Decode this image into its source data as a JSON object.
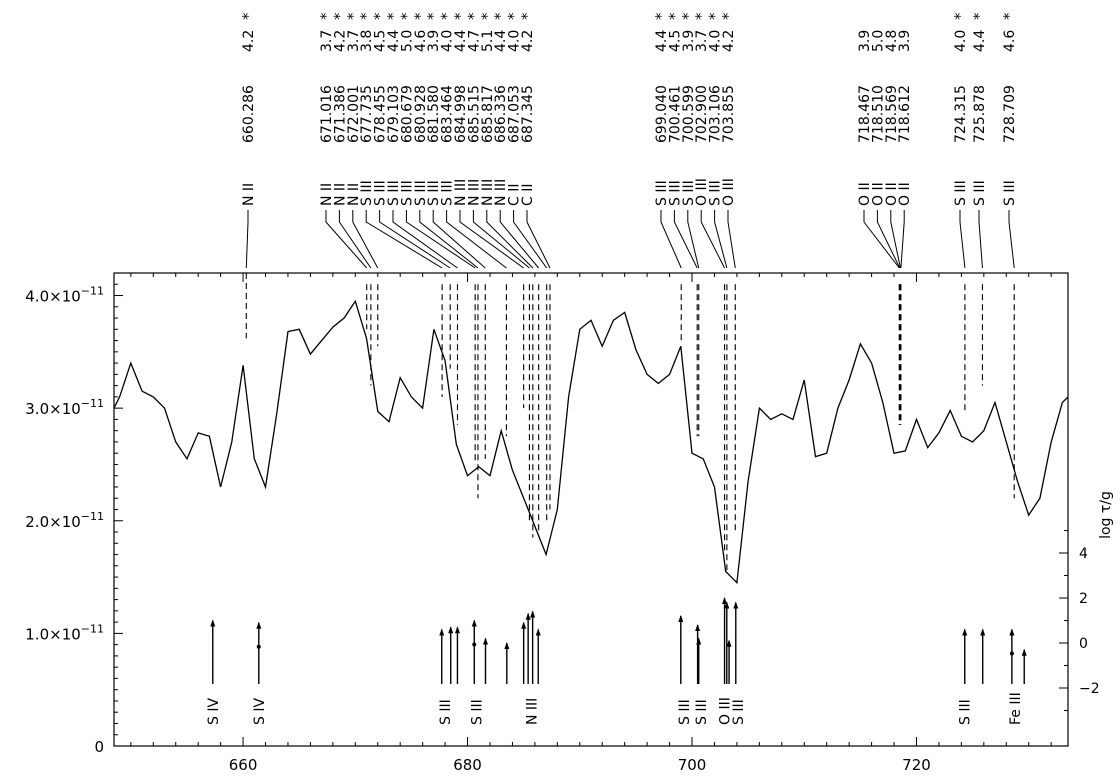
{
  "chart_data": {
    "type": "line",
    "title": "",
    "xlabel": "",
    "ylabel": "",
    "right_axis_label": "log τ/g",
    "xlim": [
      648.5,
      733.5
    ],
    "ylim": [
      0,
      4.2e-11
    ],
    "x_ticks": [
      660,
      680,
      700,
      720
    ],
    "x_tick_labels": [
      "660",
      "680",
      "700",
      "720"
    ],
    "y_ticks": [
      0,
      1e-11,
      2e-11,
      3e-11,
      4e-11
    ],
    "y_tick_labels": [
      {
        "mant": "0",
        "exp": ""
      },
      {
        "mant": "1.0×10",
        "exp": "−11"
      },
      {
        "mant": "2.0×10",
        "exp": "−11"
      },
      {
        "mant": "3.0×10",
        "exp": "−11"
      },
      {
        "mant": "4.0×10",
        "exp": "−11"
      }
    ],
    "right_ticks": [
      -2,
      0,
      2,
      4
    ],
    "right_tick_labels": [
      "−2",
      "0",
      "2",
      "4"
    ],
    "grid": false,
    "series": [
      {
        "x": [
          648.5,
          649.0,
          650.0,
          651.0,
          652.0,
          653.0,
          654.0,
          655.0,
          656.0,
          657.0,
          658.0,
          659.0,
          660.0,
          661.0,
          662.0,
          663.0,
          664.0,
          665.0,
          666.0,
          667.0,
          668.0,
          669.0,
          670.0,
          671.0,
          672.0,
          673.0,
          674.0,
          675.0,
          676.0,
          677.0,
          678.0,
          679.0,
          680.0,
          681.0,
          682.0,
          683.0,
          684.0,
          685.0,
          686.0,
          687.0,
          688.0,
          689.0,
          690.0,
          691.0,
          692.0,
          693.0,
          694.0,
          695.0,
          696.0,
          697.0,
          698.0,
          699.0,
          700.0,
          701.0,
          702.0,
          703.0,
          704.0,
          705.0,
          706.0,
          707.0,
          708.0,
          709.0,
          710.0,
          711.0,
          712.0,
          713.0,
          714.0,
          715.0,
          716.0,
          717.0,
          718.0,
          719.0,
          720.0,
          721.0,
          722.0,
          723.0,
          724.0,
          725.0,
          726.0,
          727.0,
          728.0,
          729.0,
          730.0,
          731.0,
          732.0,
          733.0,
          733.5
        ],
        "y": [
          3e-11,
          3.1e-11,
          3.4e-11,
          3.15e-11,
          3.1e-11,
          3e-11,
          2.7e-11,
          2.55e-11,
          2.78e-11,
          2.75e-11,
          2.3e-11,
          2.7e-11,
          3.38e-11,
          2.55e-11,
          2.3e-11,
          2.95e-11,
          3.68e-11,
          3.7e-11,
          3.48e-11,
          3.6e-11,
          3.72e-11,
          3.8e-11,
          3.95e-11,
          3.62e-11,
          2.97e-11,
          2.88e-11,
          3.27e-11,
          3.1e-11,
          3e-11,
          3.7e-11,
          3.42e-11,
          2.68e-11,
          2.4e-11,
          2.48e-11,
          2.4e-11,
          2.8e-11,
          2.45e-11,
          2.2e-11,
          1.95e-11,
          1.7e-11,
          2.1e-11,
          3.1e-11,
          3.7e-11,
          3.78e-11,
          3.55e-11,
          3.78e-11,
          3.85e-11,
          3.52e-11,
          3.3e-11,
          3.22e-11,
          3.3e-11,
          3.55e-11,
          2.6e-11,
          2.55e-11,
          2.3e-11,
          1.55e-11,
          1.45e-11,
          2.35e-11,
          3e-11,
          2.9e-11,
          2.95e-11,
          2.9e-11,
          3.25e-11,
          2.57e-11,
          2.6e-11,
          3e-11,
          3.25e-11,
          3.57e-11,
          3.4e-11,
          3.05e-11,
          2.6e-11,
          2.62e-11,
          2.9e-11,
          2.65e-11,
          2.78e-11,
          2.98e-11,
          2.75e-11,
          2.7e-11,
          2.8e-11,
          3.05e-11,
          2.7e-11,
          2.35e-11,
          2.05e-11,
          2.2e-11,
          2.7e-11,
          3.05e-11,
          3.1e-11
        ]
      }
    ],
    "top_annotations": [
      {
        "wl": 660.286,
        "ion": "N II",
        "label": "660.286",
        "value": "4.2",
        "star": true,
        "dash_top": 4.2e-11,
        "dash_bottom": 3.62e-11
      },
      {
        "wl": 671.016,
        "ion": "N II",
        "label": "671.016",
        "value": "3.7",
        "star": true,
        "dash_top": 4.1e-11,
        "dash_bottom": 3.7e-11
      },
      {
        "wl": 671.386,
        "ion": "N II",
        "label": "671.386",
        "value": "4.2",
        "star": true,
        "dash_top": 4.1e-11,
        "dash_bottom": 3.2e-11
      },
      {
        "wl": 672.001,
        "ion": "N II",
        "label": "672.001",
        "value": "3.7",
        "star": true,
        "dash_top": 4.1e-11,
        "dash_bottom": 3.55e-11
      },
      {
        "wl": 677.735,
        "ion": "S III",
        "label": "677.735",
        "value": "3.8",
        "star": true,
        "dash_top": 4.1e-11,
        "dash_bottom": 3.1e-11
      },
      {
        "wl": 678.455,
        "ion": "S III",
        "label": "678.455",
        "value": "4.5",
        "star": true,
        "dash_top": 4.1e-11,
        "dash_bottom": 3.35e-11
      },
      {
        "wl": 679.103,
        "ion": "S III",
        "label": "679.103",
        "value": "4.4",
        "star": true,
        "dash_top": 4.1e-11,
        "dash_bottom": 2.85e-11
      },
      {
        "wl": 680.679,
        "ion": "S III",
        "label": "680.679",
        "value": "5.0",
        "star": true,
        "dash_top": 4.1e-11,
        "dash_bottom": 2.5e-11
      },
      {
        "wl": 680.928,
        "ion": "S III",
        "label": "680.928",
        "value": "4.6",
        "star": true,
        "dash_top": 4.1e-11,
        "dash_bottom": 2.2e-11
      },
      {
        "wl": 681.58,
        "ion": "S III",
        "label": "681.580",
        "value": "3.9",
        "star": true,
        "dash_top": 4.1e-11,
        "dash_bottom": 2.55e-11
      },
      {
        "wl": 683.464,
        "ion": "S III",
        "label": "683.464",
        "value": "4.0",
        "star": true,
        "dash_top": 4.1e-11,
        "dash_bottom": 2.75e-11
      },
      {
        "wl": 684.998,
        "ion": "N III",
        "label": "684.998",
        "value": "4.4",
        "star": true,
        "dash_top": 4.1e-11,
        "dash_bottom": 3e-11
      },
      {
        "wl": 685.515,
        "ion": "N III",
        "label": "685.515",
        "value": "4.7",
        "star": true,
        "dash_top": 4.1e-11,
        "dash_bottom": 2e-11
      },
      {
        "wl": 685.817,
        "ion": "N III",
        "label": "685.817",
        "value": "5.1",
        "star": true,
        "dash_top": 4.1e-11,
        "dash_bottom": 1.85e-11
      },
      {
        "wl": 686.336,
        "ion": "N III",
        "label": "686.336",
        "value": "4.4",
        "star": true,
        "dash_top": 4.1e-11,
        "dash_bottom": 1.9e-11
      },
      {
        "wl": 687.053,
        "ion": "C II",
        "label": "687.053",
        "value": "4.0",
        "star": true,
        "dash_top": 4.1e-11,
        "dash_bottom": 2e-11
      },
      {
        "wl": 687.345,
        "ion": "C II",
        "label": "687.345",
        "value": "4.2",
        "star": true,
        "dash_top": 4.1e-11,
        "dash_bottom": 2.1e-11
      },
      {
        "wl": 699.04,
        "ion": "S III",
        "label": "699.040",
        "value": "4.4",
        "star": true,
        "dash_top": 4.1e-11,
        "dash_bottom": 3.6e-11
      },
      {
        "wl": 700.461,
        "ion": "S III",
        "label": "700.461",
        "value": "4.5",
        "star": true,
        "dash_top": 4.1e-11,
        "dash_bottom": 2.75e-11
      },
      {
        "wl": 700.599,
        "ion": "S III",
        "label": "700.599",
        "value": "3.9",
        "star": true,
        "dash_top": 4.1e-11,
        "dash_bottom": 2.75e-11
      },
      {
        "wl": 702.9,
        "ion": "O III",
        "label": "702.900",
        "value": "3.7",
        "star": true,
        "dash_top": 4.1e-11,
        "dash_bottom": 1.7e-11
      },
      {
        "wl": 703.106,
        "ion": "S III",
        "label": "703.106",
        "value": "4.0",
        "star": true,
        "dash_top": 4.1e-11,
        "dash_bottom": 1.55e-11
      },
      {
        "wl": 703.855,
        "ion": "O III",
        "label": "703.855",
        "value": "4.2",
        "star": true,
        "dash_top": 4.1e-11,
        "dash_bottom": 1.9e-11
      },
      {
        "wl": 718.467,
        "ion": "O II",
        "label": "718.467",
        "value": "3.9",
        "star": false,
        "dash_top": 4.1e-11,
        "dash_bottom": 2.85e-11
      },
      {
        "wl": 718.51,
        "ion": "O II",
        "label": "718.510",
        "value": "5.0",
        "star": false,
        "dash_top": 4.1e-11,
        "dash_bottom": 2.85e-11
      },
      {
        "wl": 718.569,
        "ion": "O II",
        "label": "718.569",
        "value": "4.8",
        "star": false,
        "dash_top": 4.1e-11,
        "dash_bottom": 2.85e-11
      },
      {
        "wl": 718.612,
        "ion": "O II",
        "label": "718.612",
        "value": "3.9",
        "star": false,
        "dash_top": 4.1e-11,
        "dash_bottom": 2.85e-11
      },
      {
        "wl": 724.315,
        "ion": "S III",
        "label": "724.315",
        "value": "4.0",
        "star": true,
        "dash_top": 4.1e-11,
        "dash_bottom": 2.95e-11
      },
      {
        "wl": 725.878,
        "ion": "S III",
        "label": "725.878",
        "value": "4.4",
        "star": true,
        "dash_top": 4.1e-11,
        "dash_bottom": 3.2e-11
      },
      {
        "wl": 728.709,
        "ion": "S III",
        "label": "728.709",
        "value": "4.6",
        "star": true,
        "dash_top": 4.1e-11,
        "dash_bottom": 2.2e-11
      }
    ],
    "bottom_lines": [
      {
        "wl": 657.3,
        "log_tau": 1.0,
        "dot": false
      },
      {
        "wl": 661.4,
        "log_tau": 0.9,
        "dot": true
      },
      {
        "wl": 677.7,
        "log_tau": 0.6,
        "dot": false
      },
      {
        "wl": 678.5,
        "log_tau": 0.7,
        "dot": false
      },
      {
        "wl": 679.1,
        "log_tau": 0.7,
        "dot": false
      },
      {
        "wl": 680.6,
        "log_tau": 1.0,
        "dot": true
      },
      {
        "wl": 681.6,
        "log_tau": 0.2,
        "dot": false
      },
      {
        "wl": 683.5,
        "log_tau": 0.0,
        "dot": false
      },
      {
        "wl": 685.0,
        "log_tau": 0.9,
        "dot": false
      },
      {
        "wl": 685.4,
        "log_tau": 1.3,
        "dot": false
      },
      {
        "wl": 685.8,
        "log_tau": 1.4,
        "dot": false
      },
      {
        "wl": 686.3,
        "log_tau": 0.6,
        "dot": false
      },
      {
        "wl": 699.0,
        "log_tau": 1.2,
        "dot": false
      },
      {
        "wl": 700.5,
        "log_tau": 0.8,
        "dot": false
      },
      {
        "wl": 700.6,
        "log_tau": 0.2,
        "dot": false
      },
      {
        "wl": 702.9,
        "log_tau": 2.0,
        "dot": false
      },
      {
        "wl": 703.1,
        "log_tau": 1.8,
        "dot": false
      },
      {
        "wl": 703.3,
        "log_tau": 0.1,
        "dot": false
      },
      {
        "wl": 703.9,
        "log_tau": 1.8,
        "dot": false
      },
      {
        "wl": 724.3,
        "log_tau": 0.6,
        "dot": false
      },
      {
        "wl": 725.9,
        "log_tau": 0.6,
        "dot": false
      },
      {
        "wl": 728.5,
        "log_tau": 0.6,
        "dot": true
      },
      {
        "wl": 729.6,
        "log_tau": -0.3,
        "dot": false
      }
    ],
    "bottom_labels": [
      {
        "wl": 657.3,
        "text": "S IV"
      },
      {
        "wl": 661.4,
        "text": "S IV"
      },
      {
        "wl": 678.0,
        "text": "S III"
      },
      {
        "wl": 680.8,
        "text": "S III"
      },
      {
        "wl": 685.7,
        "text": "N III"
      },
      {
        "wl": 699.3,
        "text": "S III"
      },
      {
        "wl": 700.8,
        "text": "S III"
      },
      {
        "wl": 702.9,
        "text": "O III"
      },
      {
        "wl": 704.1,
        "text": "S III"
      },
      {
        "wl": 724.3,
        "text": "S III"
      },
      {
        "wl": 728.8,
        "text": "Fe III"
      }
    ]
  }
}
